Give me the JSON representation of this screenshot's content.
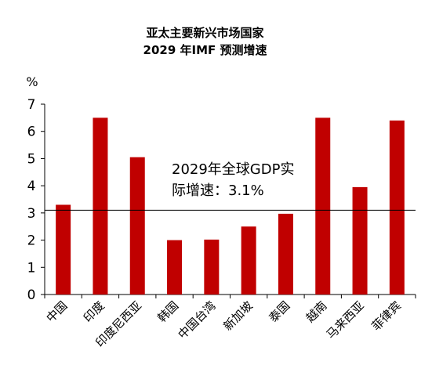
{
  "chart_data": {
    "type": "bar",
    "title": [
      "亚太主要新兴市场国家",
      "2029 年IMF 预测增速"
    ],
    "ylabel": "%",
    "xlabel": "",
    "ylim": [
      0,
      7
    ],
    "yticks": [
      0,
      1,
      2,
      3,
      4,
      5,
      6,
      7
    ],
    "grid": false,
    "bar_color": "#C00000",
    "categories": [
      "中国",
      "印度",
      "印度尼西亚",
      "韩国",
      "中国台湾",
      "新加坡",
      "泰国",
      "越南",
      "马来西亚",
      "菲律宾"
    ],
    "values": [
      3.3,
      6.5,
      5.05,
      2.0,
      2.02,
      2.5,
      2.97,
      6.5,
      3.95,
      6.4
    ],
    "reference_line": {
      "value": 3.1,
      "label": [
        "2029年全球GDP实",
        "际增速：3.1%"
      ]
    }
  }
}
